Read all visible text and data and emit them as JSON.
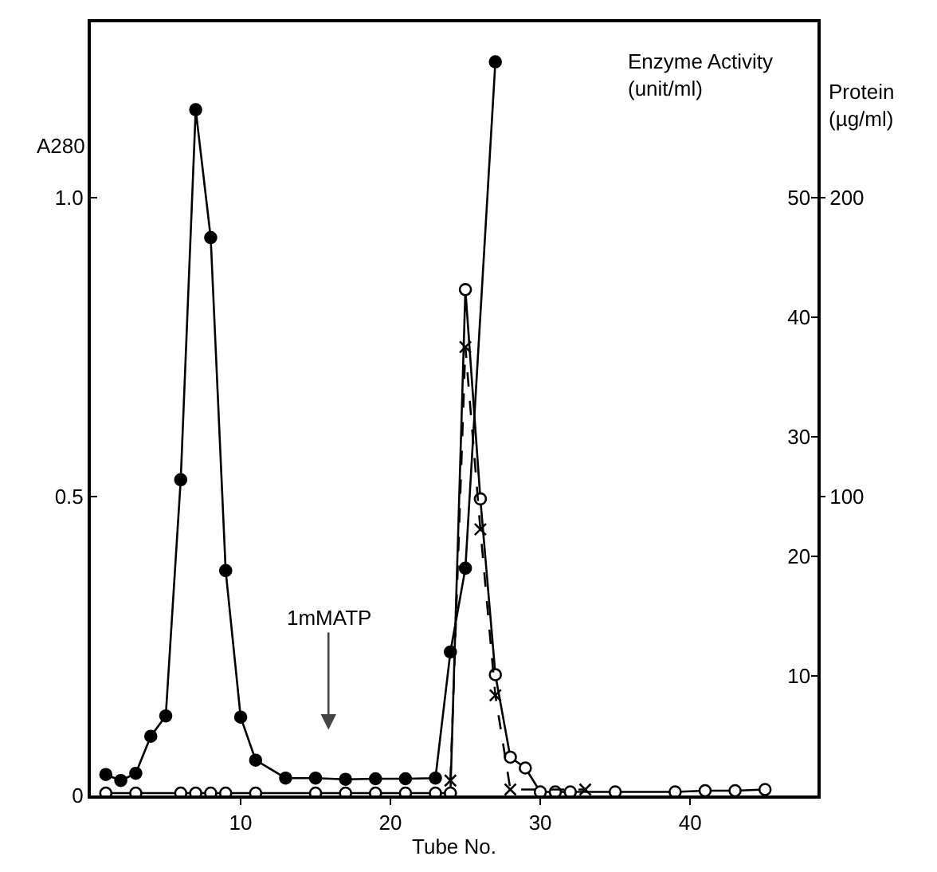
{
  "chart_data": {
    "type": "line",
    "xlabel": "Tube No.",
    "ylabel": "A280",
    "y2label": "Enzyme Activity (unit/ml)",
    "y3label": "Protein (µg/ml)",
    "xlim": [
      0,
      48.5
    ],
    "xticks": [
      10,
      20,
      30,
      40
    ],
    "ylim": [
      0,
      1.293
    ],
    "yticks": [
      0,
      0.5,
      {
        "value": 1,
        "label": "1.0"
      }
    ],
    "y2lim": [
      0,
      64.65
    ],
    "y2ticks": [
      10,
      20,
      30,
      40,
      50
    ],
    "y3lim": [
      0,
      258.6
    ],
    "y3ticks": [
      100,
      200
    ],
    "grid": false,
    "series": [
      {
        "color": "#000000",
        "marker": "circle",
        "line_style": "solid",
        "axis": "y",
        "x": [
          1,
          2,
          3,
          4,
          5,
          6,
          7,
          8,
          9,
          10,
          11,
          13,
          15,
          17,
          19,
          21,
          23,
          24,
          25,
          27
        ],
        "values": [
          0.035,
          0.025,
          0.037,
          0.099,
          0.133,
          0.528,
          1.147,
          0.933,
          0.376,
          0.131,
          0.059,
          0.029,
          0.029,
          0.027,
          0.028,
          0.028,
          0.029,
          0.24,
          0.38,
          1.227
        ]
      },
      {
        "color": "#ffffff",
        "marker": "circle",
        "line_style": "solid",
        "axis": "y2",
        "x": [
          1,
          3,
          6,
          7,
          8,
          9,
          11,
          15,
          17,
          19,
          21,
          23,
          24,
          25,
          26,
          27,
          28,
          29,
          30,
          31,
          32,
          35,
          39,
          41,
          43,
          45
        ],
        "values": [
          0.2,
          0.2,
          0.2,
          0.2,
          0.2,
          0.2,
          0.2,
          0.2,
          0.2,
          0.2,
          0.2,
          0.2,
          0.2,
          42.3,
          24.8,
          10.1,
          3.2,
          2.3,
          0.3,
          0.3,
          0.3,
          0.3,
          0.3,
          0.4,
          0.4,
          0.5
        ]
      },
      {
        "color": "#000000",
        "marker": "cross",
        "line_style": "dashed",
        "axis": "y3",
        "x": [
          24,
          25,
          26,
          27,
          28,
          33
        ],
        "values": [
          5,
          150,
          89,
          33.5,
          2,
          2
        ]
      }
    ],
    "annotations": [
      "1mMATP"
    ]
  }
}
